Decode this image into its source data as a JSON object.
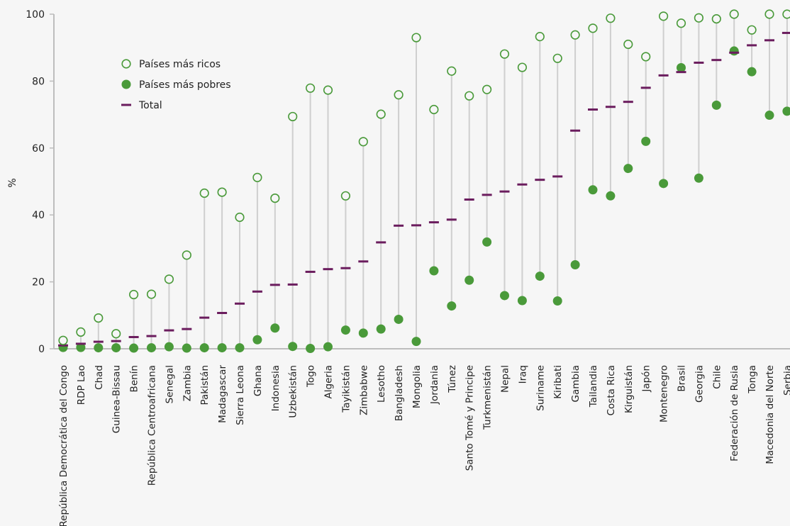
{
  "chart_data": {
    "type": "dot-range",
    "ylabel": "%",
    "ylim": [
      0,
      100
    ],
    "yticks": [
      0,
      20,
      40,
      60,
      80,
      100
    ],
    "grid": false,
    "legend_position": "top-left",
    "colors": {
      "rich": "#4a9a3a",
      "poor": "#4a9a3a",
      "total": "#6b1d5e",
      "connector": "#cfcfcf",
      "axis": "#bdbdbd"
    },
    "categories": [
      "República Democrática del Congo",
      "RDP Lao",
      "Chad",
      "Guinea-Bissau",
      "Benín",
      "República Centroafricana",
      "Senegal",
      "Zambia",
      "Pakistán",
      "Madagascar",
      "Sierra Leona",
      "Ghana",
      "Indonesia",
      "Uzbekistán",
      "Togo",
      "Algeria",
      "Tayikistán",
      "Zimbabwe",
      "Lesotho",
      "Bangladesh",
      "Mongolia",
      "Jordania",
      "Túnez",
      "Santo Tomé y Principe",
      "Turkmenistán",
      "Nepal",
      "Iraq",
      "Suriname",
      "Kiribati",
      "Gambia",
      "Tailandia",
      "Costa Rica",
      "Kirguistán",
      "Japón",
      "Montenegro",
      "Brasil",
      "Georgia",
      "Chile",
      "Federación de Rusia",
      "Tonga",
      "Macedonia del Norte",
      "Serbia"
    ],
    "series": [
      {
        "name": "Países más ricos",
        "marker": "hollow-circle",
        "values": [
          2.5,
          5,
          9.2,
          4.5,
          16.2,
          16.3,
          20.8,
          28,
          46.5,
          46.8,
          39.3,
          51.2,
          45,
          69.4,
          77.9,
          77.3,
          45.7,
          61.9,
          70.1,
          75.9,
          93,
          71.5,
          83,
          75.6,
          77.5,
          88.1,
          84.1,
          93.3,
          86.8,
          93.8,
          95.8,
          98.8,
          91,
          87.3,
          99.4,
          97.3,
          98.9,
          98.6,
          100,
          95.3,
          100,
          100
        ]
      },
      {
        "name": "Países más pobres",
        "marker": "filled-circle",
        "values": [
          0.4,
          0.4,
          0.3,
          0.3,
          0.2,
          0.3,
          0.6,
          0.2,
          0.3,
          0.3,
          0.3,
          2.7,
          6.2,
          0.7,
          0.1,
          0.6,
          5.6,
          4.7,
          5.9,
          8.8,
          2.2,
          23.3,
          12.8,
          20.5,
          31.9,
          15.9,
          14.4,
          21.7,
          14.3,
          25.1,
          47.5,
          45.7,
          53.9,
          62,
          49.4,
          84,
          51,
          72.8,
          89,
          82.8,
          69.8,
          71
        ]
      },
      {
        "name": "Total",
        "marker": "dash",
        "values": [
          1,
          1.5,
          2.1,
          2.3,
          3.5,
          3.8,
          5.5,
          5.9,
          9.3,
          10.7,
          13.5,
          17.1,
          19.1,
          19.2,
          23,
          23.8,
          24.1,
          26.1,
          31.8,
          36.8,
          36.9,
          37.8,
          38.6,
          44.6,
          46,
          47,
          49.1,
          50.5,
          51.5,
          65.2,
          71.5,
          72.3,
          73.8,
          78,
          81.7,
          82.7,
          85.5,
          86.3,
          88.5,
          90.7,
          92.2,
          94.4
        ]
      }
    ]
  }
}
